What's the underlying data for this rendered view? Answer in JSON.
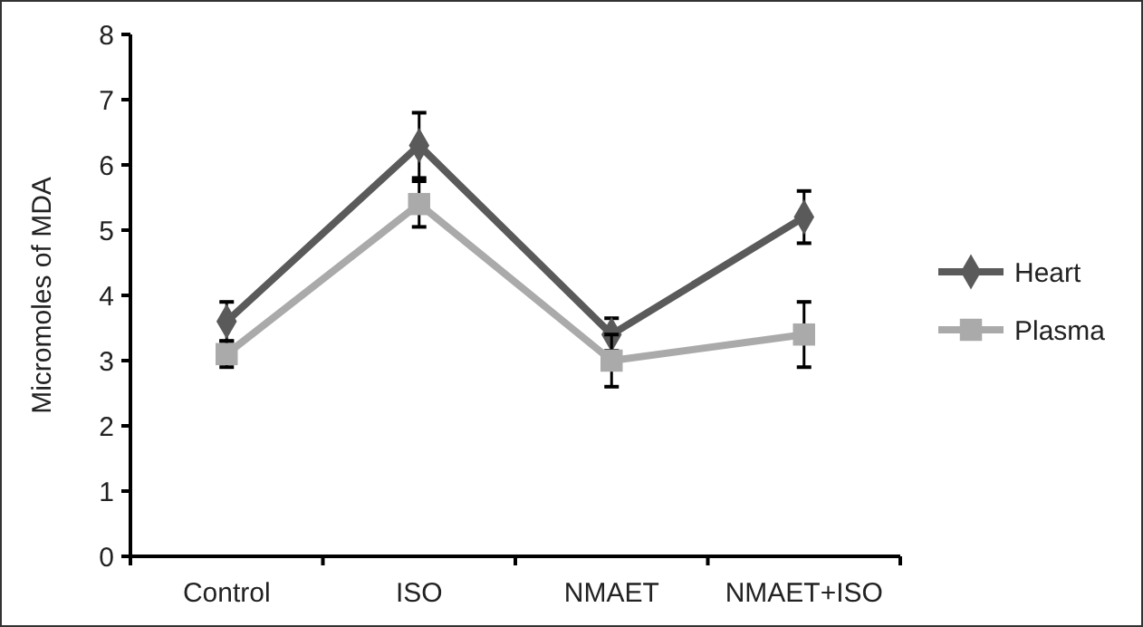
{
  "chart_data": {
    "type": "line",
    "ylabel": "Micromoles of MDA",
    "categories": [
      "Control",
      "ISO",
      "NMAET",
      "NMAET+ISO"
    ],
    "series": [
      {
        "name": "Heart",
        "color": "#5a5a5a",
        "marker": "diamond",
        "values": [
          3.6,
          6.3,
          3.4,
          5.2
        ],
        "errors": [
          0.3,
          0.5,
          0.25,
          0.4
        ]
      },
      {
        "name": "Plasma",
        "color": "#aaaaaa",
        "marker": "square",
        "values": [
          3.1,
          5.4,
          3.0,
          3.4
        ],
        "errors": [
          0.2,
          0.35,
          0.4,
          0.5
        ]
      }
    ],
    "ylim": [
      0,
      8
    ],
    "yticks": [
      0,
      1,
      2,
      3,
      4,
      5,
      6,
      7,
      8
    ],
    "grid": false,
    "legend": "right"
  }
}
